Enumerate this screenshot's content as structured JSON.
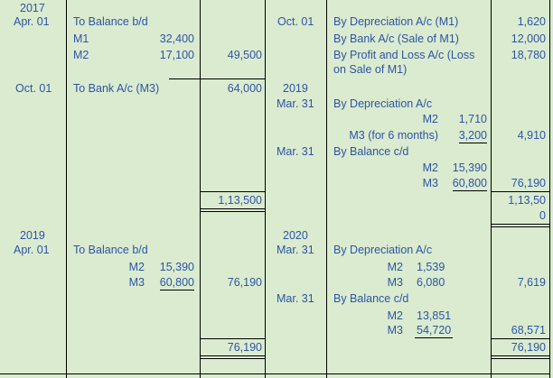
{
  "debit": {
    "block1": {
      "year": "2017",
      "date": "Apr. 01",
      "particulars": "To Balance b/d",
      "items": [
        {
          "label": "M1",
          "value": "32,400"
        },
        {
          "label": "M2",
          "value": "17,100"
        }
      ],
      "amount": "49,500"
    },
    "block2": {
      "date": "Oct. 01",
      "particulars": "To Bank A/c (M3)",
      "amount": "64,000"
    },
    "total1": "1,13,500",
    "block3": {
      "year": "2019",
      "date": "Apr. 01",
      "particulars": "To Balance b/d",
      "items": [
        {
          "label": "M2",
          "value": "15,390"
        },
        {
          "label": "M3",
          "value": "60,800"
        }
      ],
      "amount": "76,190"
    },
    "total2": "76,190"
  },
  "credit": {
    "e1": {
      "date": "Oct. 01",
      "particulars": "By Depreciation A/c (M1)",
      "amount": "1,620"
    },
    "e2": {
      "particulars": "By Bank A/c (Sale of M1)",
      "amount": "12,000"
    },
    "e3": {
      "particulars_line1": "By Profit and Loss A/c (Loss",
      "particulars_line2": "on Sale of M1)",
      "amount": "18,780"
    },
    "e4": {
      "year": "2019",
      "date": "Mar. 31",
      "particulars": "By Depreciation A/c",
      "items": [
        {
          "label": "M2",
          "value": "1,710"
        },
        {
          "label": "M3 (for 6 months)",
          "value": "3,200"
        }
      ],
      "amount": "4,910"
    },
    "e5": {
      "date": "Mar. 31",
      "particulars": "By Balance c/d",
      "items": [
        {
          "label": "M2",
          "value": "15,390"
        },
        {
          "label": "M3",
          "value": "60,800"
        }
      ],
      "amount": "76,190"
    },
    "total1_line1": "1,13,50",
    "total1_line2": "0",
    "e6": {
      "year": "2020",
      "date": "Mar. 31",
      "particulars": "By Depreciation A/c",
      "items": [
        {
          "label": "M2",
          "value": "1,539"
        },
        {
          "label": "M3",
          "value": "6,080"
        }
      ],
      "amount": "7,619"
    },
    "e7": {
      "date": "Mar. 31",
      "particulars": "By Balance c/d",
      "items": [
        {
          "label": "M2",
          "value": "13,851"
        },
        {
          "label": "M3",
          "value": "54,720"
        }
      ],
      "amount": "68,571"
    },
    "total2": "76,190"
  }
}
